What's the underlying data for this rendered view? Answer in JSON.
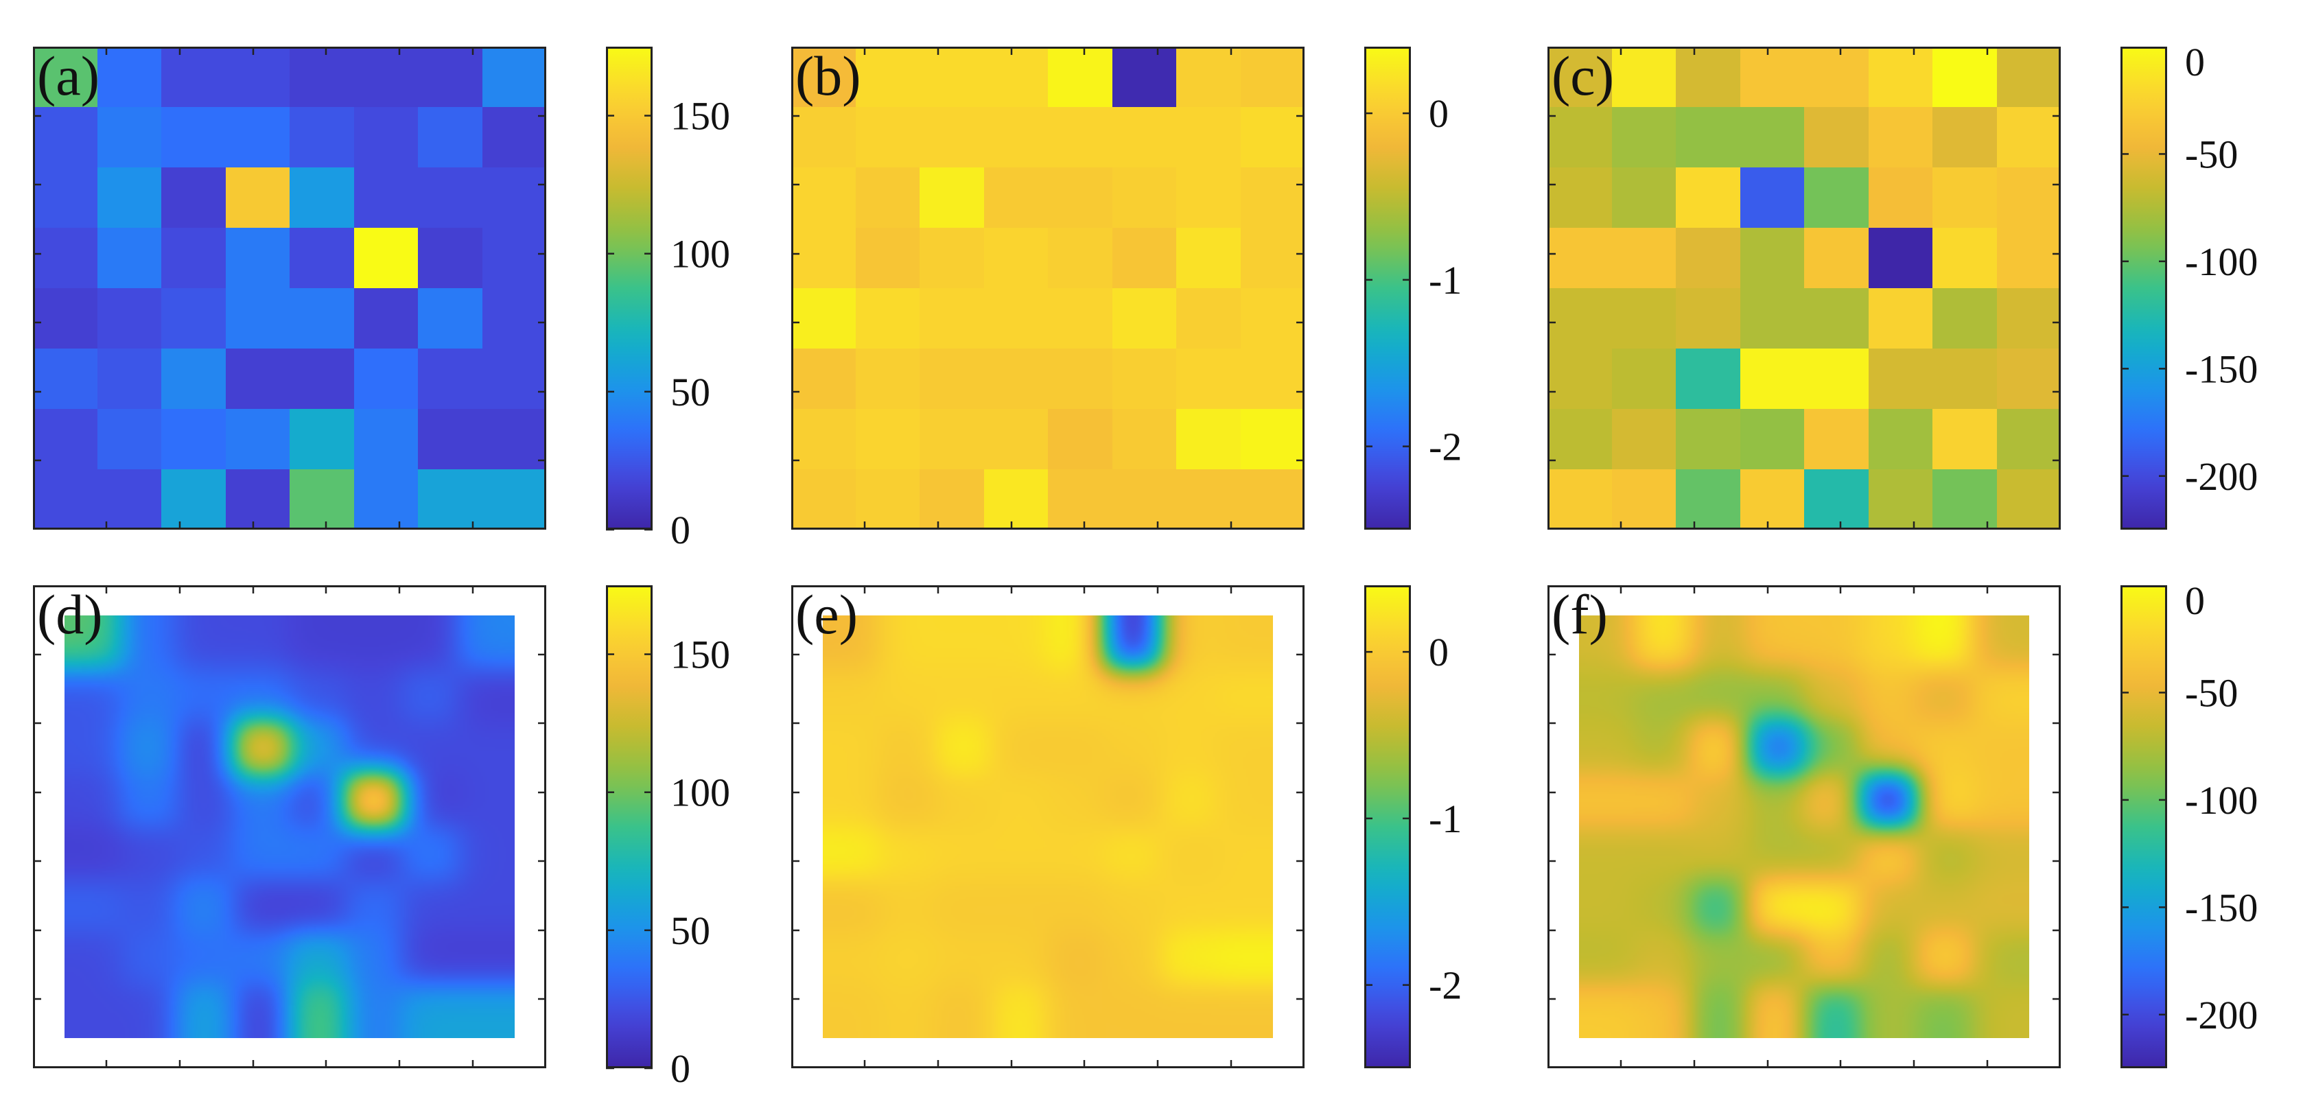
{
  "figure": {
    "colormap": [
      "#3e26a8",
      "#4544d9",
      "#2f6ffb",
      "#1b97e8",
      "#13b3c2",
      "#3ac28a",
      "#85c24a",
      "#c4bb2f",
      "#f4b839",
      "#fad52f",
      "#f9fb15"
    ]
  },
  "chart_data": [
    {
      "type": "heatmap",
      "panel_label": "(a)",
      "style": "discrete",
      "grid_size": [
        8,
        8
      ],
      "clim": [
        0,
        175
      ],
      "colorbar_ticks": [
        0,
        50,
        100,
        150
      ],
      "colorbar_tick_labels": [
        "0",
        "50",
        "100",
        "150"
      ],
      "values": [
        [
          95,
          35,
          20,
          20,
          15,
          15,
          15,
          45
        ],
        [
          25,
          40,
          35,
          35,
          25,
          20,
          30,
          15
        ],
        [
          25,
          50,
          15,
          150,
          55,
          20,
          20,
          20
        ],
        [
          20,
          40,
          20,
          40,
          20,
          175,
          15,
          20
        ],
        [
          15,
          20,
          25,
          40,
          40,
          15,
          40,
          20
        ],
        [
          30,
          25,
          45,
          15,
          15,
          35,
          20,
          20
        ],
        [
          20,
          30,
          35,
          40,
          65,
          40,
          15,
          15
        ],
        [
          20,
          20,
          60,
          15,
          95,
          40,
          60,
          60
        ]
      ]
    },
    {
      "type": "heatmap",
      "panel_label": "(b)",
      "style": "discrete",
      "grid_size": [
        8,
        8
      ],
      "clim": [
        -2.5,
        0.4
      ],
      "colorbar_ticks": [
        0,
        -1,
        -2
      ],
      "colorbar_tick_labels": [
        "0",
        "-1",
        "-2"
      ],
      "values": [
        [
          -0.15,
          0.15,
          0.15,
          0.15,
          0.35,
          -2.45,
          0.05,
          0.0
        ],
        [
          0.05,
          0.1,
          0.1,
          0.1,
          0.1,
          0.1,
          0.1,
          0.15
        ],
        [
          0.1,
          0.0,
          0.3,
          0.0,
          0.0,
          0.05,
          0.1,
          0.05
        ],
        [
          0.1,
          -0.05,
          0.05,
          0.1,
          0.05,
          -0.05,
          0.2,
          0.05
        ],
        [
          0.3,
          0.15,
          0.1,
          0.1,
          0.1,
          0.2,
          0.05,
          0.1
        ],
        [
          -0.05,
          0.05,
          0.0,
          0.0,
          0.0,
          0.05,
          0.1,
          0.1
        ],
        [
          0.05,
          0.1,
          0.05,
          0.05,
          -0.1,
          0.0,
          0.3,
          0.35
        ],
        [
          0.0,
          0.05,
          -0.05,
          0.25,
          -0.05,
          -0.05,
          -0.05,
          -0.05
        ]
      ]
    },
    {
      "type": "heatmap",
      "panel_label": "(c)",
      "style": "discrete",
      "grid_size": [
        8,
        8
      ],
      "clim": [
        -225,
        0
      ],
      "colorbar_ticks": [
        0,
        -50,
        -100,
        -150,
        -200
      ],
      "colorbar_tick_labels": [
        "0",
        "-50",
        "-100",
        "-150",
        "-200"
      ],
      "values": [
        [
          -60,
          -10,
          -60,
          -35,
          -35,
          -20,
          0,
          -60
        ],
        [
          -70,
          -80,
          -85,
          -85,
          -55,
          -35,
          -55,
          -25
        ],
        [
          -65,
          -75,
          -20,
          -190,
          -95,
          -40,
          -30,
          -35
        ],
        [
          -35,
          -35,
          -55,
          -75,
          -35,
          -225,
          -20,
          -35
        ],
        [
          -65,
          -65,
          -60,
          -75,
          -75,
          -25,
          -75,
          -60
        ],
        [
          -65,
          -70,
          -120,
          -5,
          -5,
          -60,
          -60,
          -55
        ],
        [
          -70,
          -60,
          -80,
          -85,
          -35,
          -80,
          -25,
          -75
        ],
        [
          -30,
          -35,
          -100,
          -30,
          -125,
          -75,
          -95,
          -65
        ]
      ]
    },
    {
      "type": "heatmap",
      "panel_label": "(d)",
      "style": "interpolated",
      "source_panel": 0,
      "clim": [
        0,
        175
      ],
      "colorbar_ticks": [
        0,
        50,
        100,
        150
      ],
      "colorbar_tick_labels": [
        "0",
        "50",
        "100",
        "150"
      ]
    },
    {
      "type": "heatmap",
      "panel_label": "(e)",
      "style": "interpolated",
      "source_panel": 1,
      "clim": [
        -2.5,
        0.4
      ],
      "colorbar_ticks": [
        0,
        -1,
        -2
      ],
      "colorbar_tick_labels": [
        "0",
        "-1",
        "-2"
      ]
    },
    {
      "type": "heatmap",
      "panel_label": "(f)",
      "style": "interpolated",
      "source_panel": 2,
      "clim": [
        -225,
        0
      ],
      "colorbar_ticks": [
        0,
        -50,
        -100,
        -150,
        -200
      ],
      "colorbar_tick_labels": [
        "0",
        "-50",
        "-100",
        "-150",
        "-200"
      ]
    }
  ]
}
